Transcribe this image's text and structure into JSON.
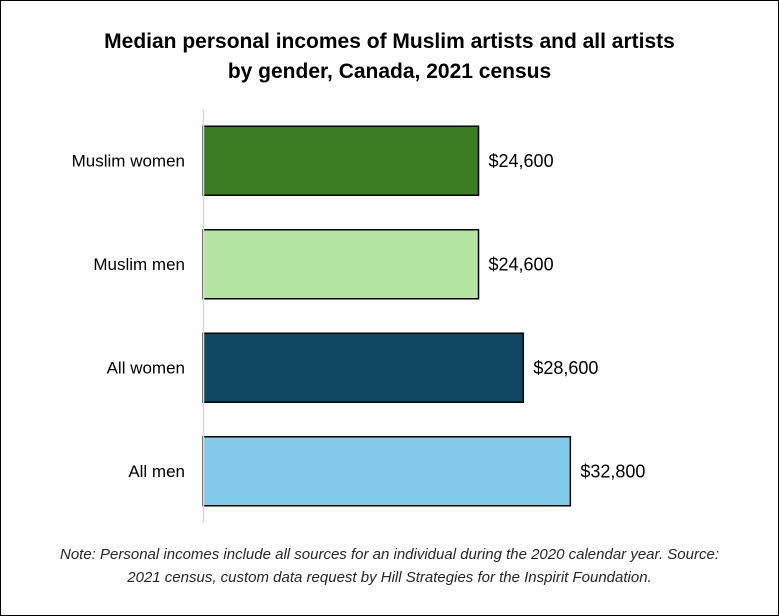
{
  "chart_data": {
    "type": "bar",
    "orientation": "horizontal",
    "title_lines": [
      "Median personal incomes of Muslim artists and all artists",
      "by gender, Canada, 2021 census"
    ],
    "categories": [
      "Muslim women",
      "Muslim men",
      "All women",
      "All men"
    ],
    "values": [
      24600,
      24600,
      28600,
      32800
    ],
    "value_labels": [
      "$24,600",
      "$24,600",
      "$28,600",
      "$32,800"
    ],
    "colors": [
      "#3a7d22",
      "#b4e5a2",
      "#104862",
      "#83cbeb"
    ],
    "xlim": [
      0,
      50000
    ],
    "grid": false,
    "legend": "none"
  },
  "note_lines": [
    "Note: Personal incomes include all sources for an individual during the 2020 calendar year. Source:",
    "2021 census, custom data request by Hill Strategies for the Inspirit Foundation."
  ]
}
